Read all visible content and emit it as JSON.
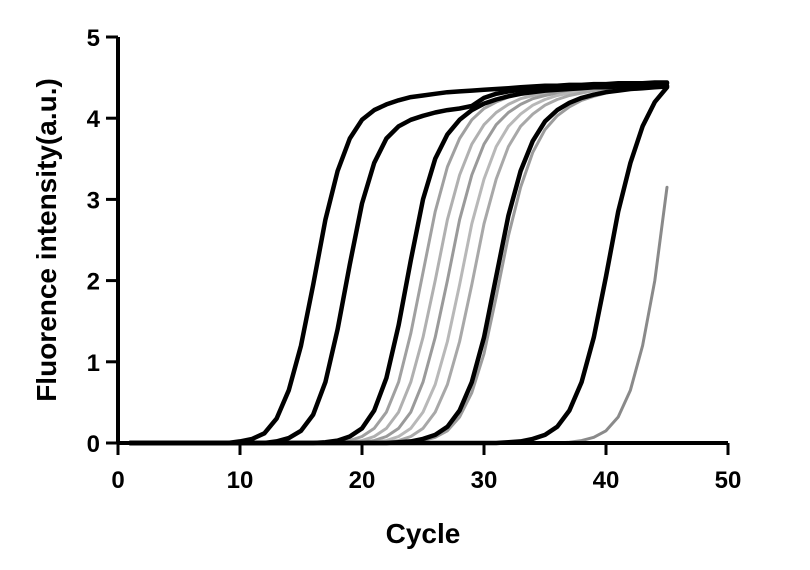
{
  "chart_data": {
    "type": "line",
    "title": "",
    "xlabel": "Cycle",
    "ylabel": "Fluorence intensity(a.u.)",
    "xlim": [
      0,
      50
    ],
    "ylim": [
      0,
      5
    ],
    "x_ticks": [
      "0",
      "10",
      "20",
      "30",
      "40",
      "50"
    ],
    "y_ticks": [
      "0",
      "1",
      "2",
      "3",
      "4",
      "5"
    ],
    "grid": false,
    "legend": "none",
    "x": [
      1,
      2,
      3,
      4,
      5,
      6,
      7,
      8,
      9,
      10,
      11,
      12,
      13,
      14,
      15,
      16,
      17,
      18,
      19,
      20,
      21,
      22,
      23,
      24,
      25,
      26,
      27,
      28,
      29,
      30,
      31,
      32,
      33,
      34,
      35,
      36,
      37,
      38,
      39,
      40,
      41,
      42,
      43,
      44,
      45
    ],
    "series": [
      {
        "color": "#000000",
        "style": "dark",
        "values": [
          0,
          0,
          0,
          0,
          0,
          0,
          0,
          0,
          0,
          0.02,
          0.05,
          0.12,
          0.3,
          0.65,
          1.2,
          1.95,
          2.75,
          3.35,
          3.75,
          3.98,
          4.1,
          4.17,
          4.22,
          4.26,
          4.28,
          4.3,
          4.32,
          4.33,
          4.34,
          4.35,
          4.36,
          4.37,
          4.38,
          4.39,
          4.4,
          4.4,
          4.41,
          4.41,
          4.42,
          4.42,
          4.43,
          4.43,
          4.43,
          4.44,
          4.44
        ]
      },
      {
        "color": "#000000",
        "style": "dark",
        "values": [
          0,
          0,
          0,
          0,
          0,
          0,
          0,
          0,
          0,
          0,
          0,
          0,
          0.02,
          0.06,
          0.15,
          0.35,
          0.75,
          1.4,
          2.2,
          2.95,
          3.45,
          3.75,
          3.9,
          3.98,
          4.03,
          4.07,
          4.1,
          4.12,
          4.15,
          4.25,
          4.3,
          4.33,
          4.35,
          4.37,
          4.38,
          4.39,
          4.4,
          4.4,
          4.41,
          4.41,
          4.42,
          4.42,
          4.42,
          4.43,
          4.43
        ]
      },
      {
        "color": "#000000",
        "style": "dark",
        "values": [
          0,
          0,
          0,
          0,
          0,
          0,
          0,
          0,
          0,
          0,
          0,
          0,
          0,
          0,
          0,
          0,
          0.01,
          0.03,
          0.08,
          0.18,
          0.4,
          0.8,
          1.45,
          2.25,
          3.0,
          3.5,
          3.8,
          3.98,
          4.1,
          4.18,
          4.23,
          4.27,
          4.3,
          4.32,
          4.34,
          4.35,
          4.36,
          4.37,
          4.38,
          4.38,
          4.39,
          4.39,
          4.4,
          4.4,
          4.4
        ]
      },
      {
        "color": "#a0a0a0",
        "style": "light",
        "values": [
          0,
          0,
          0,
          0,
          0,
          0,
          0,
          0,
          0,
          0,
          0,
          0,
          0,
          0,
          0,
          0,
          0,
          0.01,
          0.03,
          0.08,
          0.18,
          0.38,
          0.75,
          1.35,
          2.1,
          2.85,
          3.4,
          3.75,
          3.98,
          4.12,
          4.2,
          4.26,
          4.3,
          4.33,
          4.35,
          4.37,
          4.38,
          4.39,
          4.4,
          4.4,
          4.41,
          4.41,
          4.42,
          4.42,
          4.42
        ]
      },
      {
        "color": "#b0b0b0",
        "style": "light",
        "values": [
          0,
          0,
          0,
          0,
          0,
          0,
          0,
          0,
          0,
          0,
          0,
          0,
          0,
          0,
          0,
          0,
          0,
          0,
          0.01,
          0.03,
          0.08,
          0.18,
          0.38,
          0.75,
          1.3,
          2.0,
          2.75,
          3.3,
          3.68,
          3.92,
          4.07,
          4.17,
          4.24,
          4.28,
          4.31,
          4.33,
          4.35,
          4.36,
          4.37,
          4.38,
          4.39,
          4.39,
          4.4,
          4.4,
          4.4
        ]
      },
      {
        "color": "#9a9a9a",
        "style": "light",
        "values": [
          0,
          0,
          0,
          0,
          0,
          0,
          0,
          0,
          0,
          0,
          0,
          0,
          0,
          0,
          0,
          0,
          0,
          0,
          0,
          0.01,
          0.03,
          0.08,
          0.18,
          0.38,
          0.75,
          1.3,
          2.0,
          2.75,
          3.3,
          3.68,
          3.92,
          4.07,
          4.17,
          4.24,
          4.28,
          4.31,
          4.33,
          4.35,
          4.36,
          4.37,
          4.38,
          4.39,
          4.39,
          4.4,
          4.4
        ]
      },
      {
        "color": "#b8b8b8",
        "style": "light",
        "values": [
          0,
          0,
          0,
          0,
          0,
          0,
          0,
          0,
          0,
          0,
          0,
          0,
          0,
          0,
          0,
          0,
          0,
          0,
          0,
          0,
          0.01,
          0.03,
          0.08,
          0.18,
          0.38,
          0.72,
          1.25,
          1.95,
          2.7,
          3.25,
          3.65,
          3.9,
          4.05,
          4.16,
          4.23,
          4.28,
          4.31,
          4.34,
          4.36,
          4.38,
          4.39,
          4.4,
          4.41,
          4.42,
          4.42
        ]
      },
      {
        "color": "#a8a8a8",
        "style": "light",
        "values": [
          0,
          0,
          0,
          0,
          0,
          0,
          0,
          0,
          0,
          0,
          0,
          0,
          0,
          0,
          0,
          0,
          0,
          0,
          0,
          0,
          0,
          0.01,
          0.03,
          0.08,
          0.18,
          0.38,
          0.72,
          1.25,
          1.95,
          2.7,
          3.25,
          3.65,
          3.9,
          4.05,
          4.16,
          4.23,
          4.28,
          4.31,
          4.34,
          4.36,
          4.38,
          4.39,
          4.4,
          4.41,
          4.42
        ]
      },
      {
        "color": "#000000",
        "style": "dark",
        "values": [
          0,
          0,
          0,
          0,
          0,
          0,
          0,
          0,
          0,
          0,
          0,
          0,
          0,
          0,
          0,
          0,
          0,
          0,
          0,
          0,
          0,
          0,
          0.01,
          0.02,
          0.05,
          0.1,
          0.2,
          0.4,
          0.75,
          1.3,
          2.05,
          2.8,
          3.35,
          3.72,
          3.96,
          4.1,
          4.19,
          4.25,
          4.29,
          4.32,
          4.34,
          4.36,
          4.37,
          4.38,
          4.39
        ]
      },
      {
        "color": "#9c9c9c",
        "style": "light",
        "values": [
          0,
          0,
          0,
          0,
          0,
          0,
          0,
          0,
          0,
          0,
          0,
          0,
          0,
          0,
          0,
          0,
          0,
          0,
          0,
          0,
          0,
          0,
          0,
          0.01,
          0.03,
          0.07,
          0.15,
          0.32,
          0.62,
          1.1,
          1.8,
          2.55,
          3.15,
          3.58,
          3.86,
          4.03,
          4.14,
          4.22,
          4.27,
          4.31,
          4.34,
          4.37,
          4.39,
          4.41,
          4.43
        ]
      },
      {
        "color": "#000000",
        "style": "dark",
        "values": [
          0,
          0,
          0,
          0,
          0,
          0,
          0,
          0,
          0,
          0,
          0,
          0,
          0,
          0,
          0,
          0,
          0,
          0,
          0,
          0,
          0,
          0,
          0,
          0,
          0,
          0,
          0,
          0,
          0,
          0,
          0,
          0.01,
          0.02,
          0.05,
          0.1,
          0.2,
          0.4,
          0.75,
          1.3,
          2.05,
          2.85,
          3.45,
          3.9,
          4.2,
          4.38
        ]
      },
      {
        "color": "#8a8a8a",
        "style": "light",
        "values": [
          0,
          0,
          0,
          0,
          0,
          0,
          0,
          0,
          0,
          0,
          0,
          0,
          0,
          0,
          0,
          0,
          0,
          0,
          0,
          0,
          0,
          0,
          0,
          0,
          0,
          0,
          0,
          0,
          0,
          0,
          0,
          0,
          0,
          0,
          0,
          0,
          0.01,
          0.03,
          0.07,
          0.15,
          0.32,
          0.65,
          1.2,
          2.0,
          3.15
        ]
      }
    ]
  }
}
